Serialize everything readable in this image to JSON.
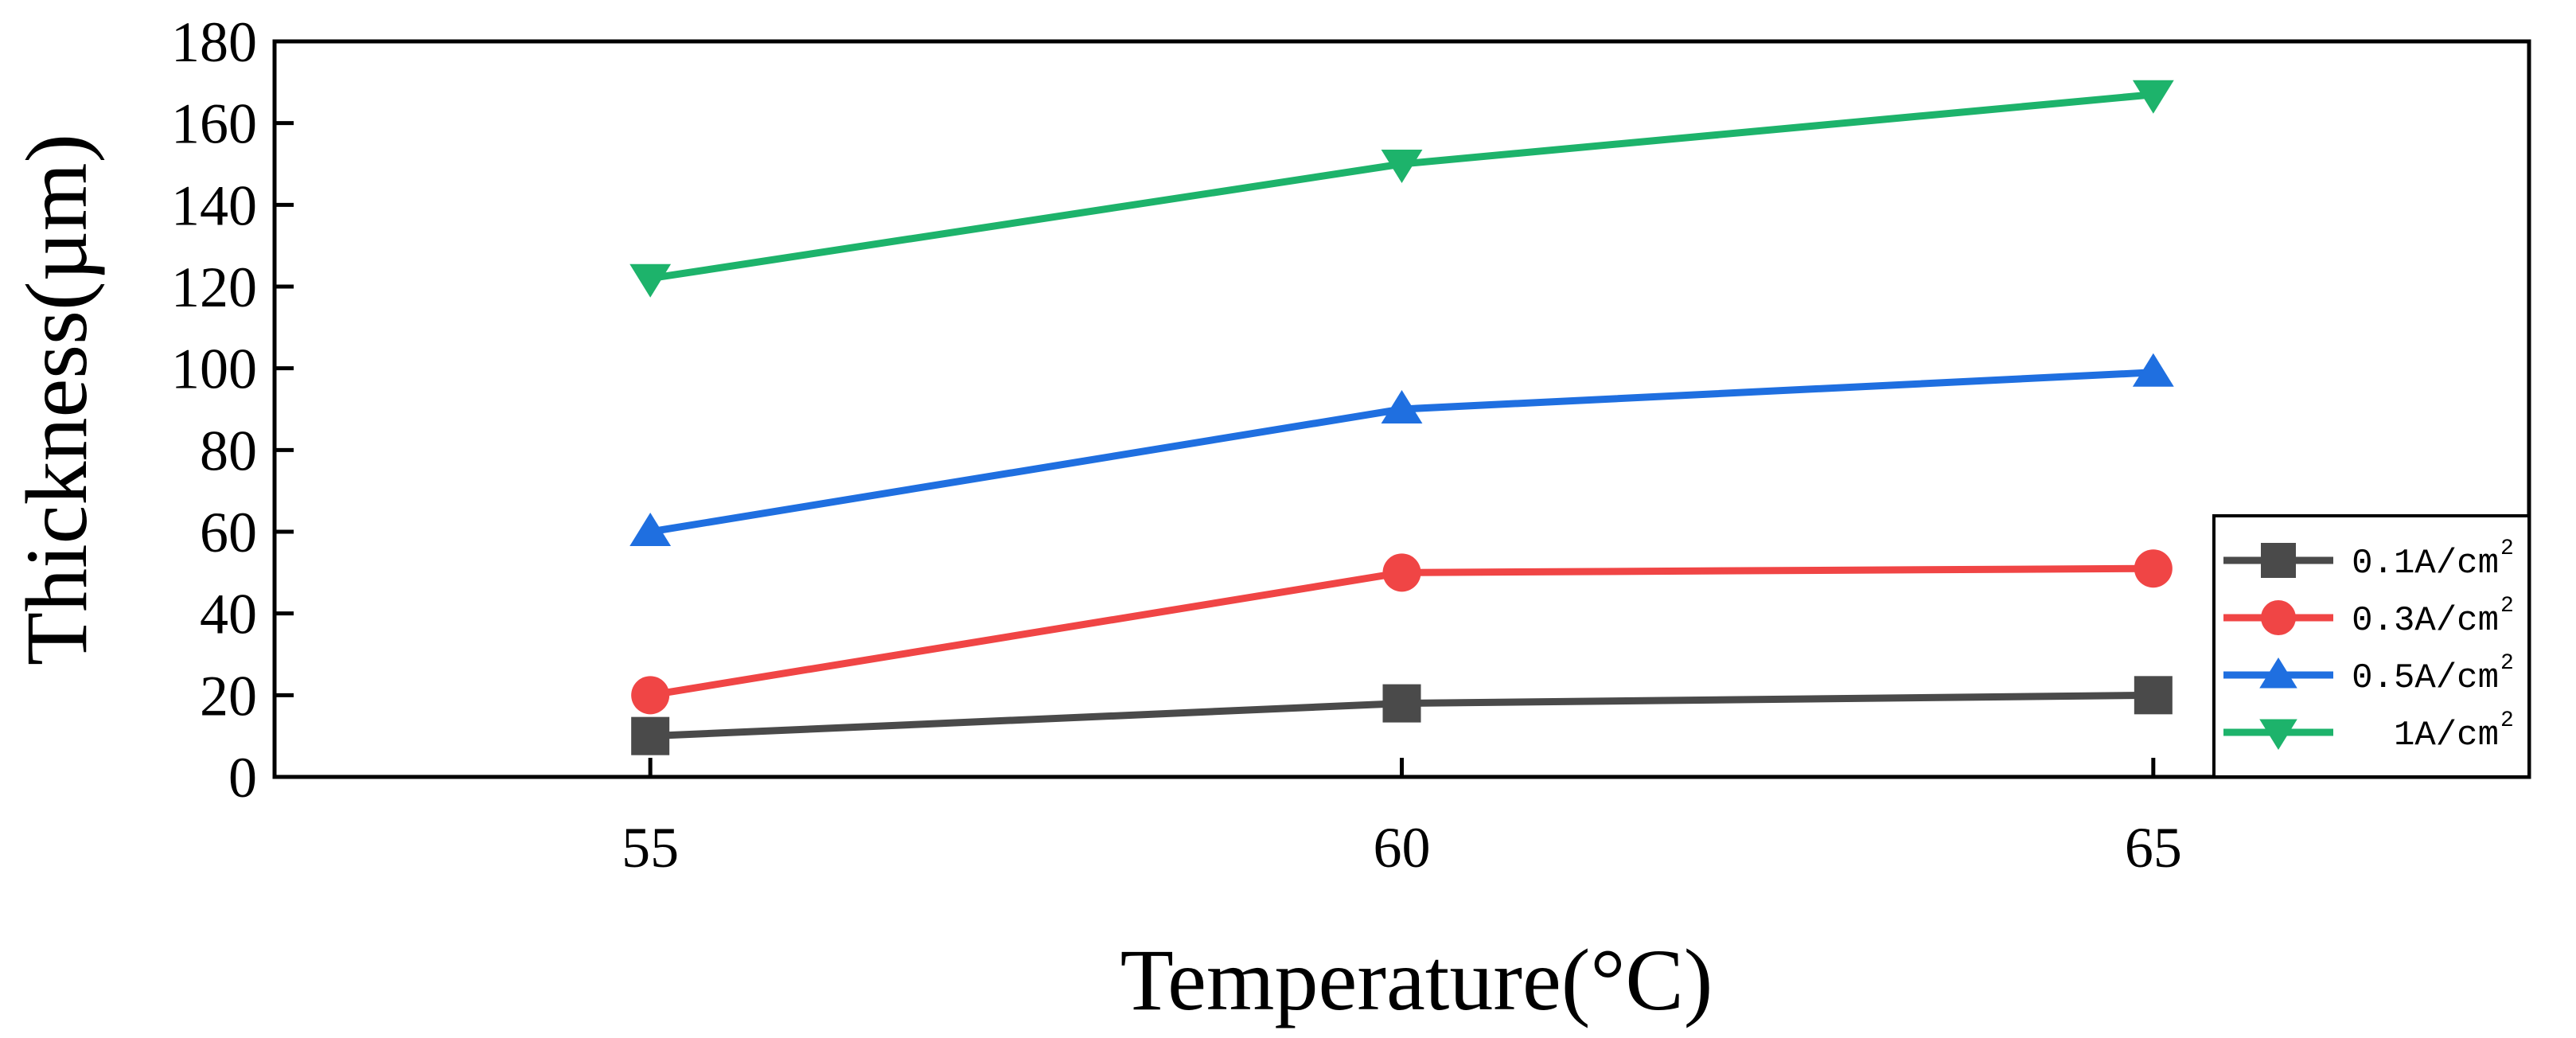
{
  "chart_data": {
    "type": "line",
    "title": "",
    "xlabel": "Temperature(°C)",
    "ylabel": "Thickness(µm)",
    "x": [
      55,
      60,
      65
    ],
    "xlim": [
      52.5,
      67.5
    ],
    "ylim": [
      0,
      180
    ],
    "xticks": [
      55,
      60,
      65
    ],
    "yticks": [
      0,
      20,
      40,
      60,
      80,
      100,
      120,
      140,
      160,
      180
    ],
    "grid": false,
    "legend_position": "bottom-right",
    "series": [
      {
        "name": "0.1A/cm",
        "sup": "2",
        "color": "#4a4a4a",
        "marker": "square",
        "values": [
          10,
          18,
          20
        ]
      },
      {
        "name": "0.3A/cm",
        "sup": "2",
        "color": "#f04545",
        "marker": "circle",
        "values": [
          20,
          50,
          51
        ]
      },
      {
        "name": "0.5A/cm",
        "sup": "2",
        "color": "#1f6fe0",
        "marker": "triangle-up",
        "values": [
          60,
          90,
          99
        ]
      },
      {
        "name": "1A/cm",
        "sup": "2",
        "color": "#1db36b",
        "marker": "triangle-down",
        "values": [
          122,
          150,
          167
        ]
      }
    ]
  }
}
